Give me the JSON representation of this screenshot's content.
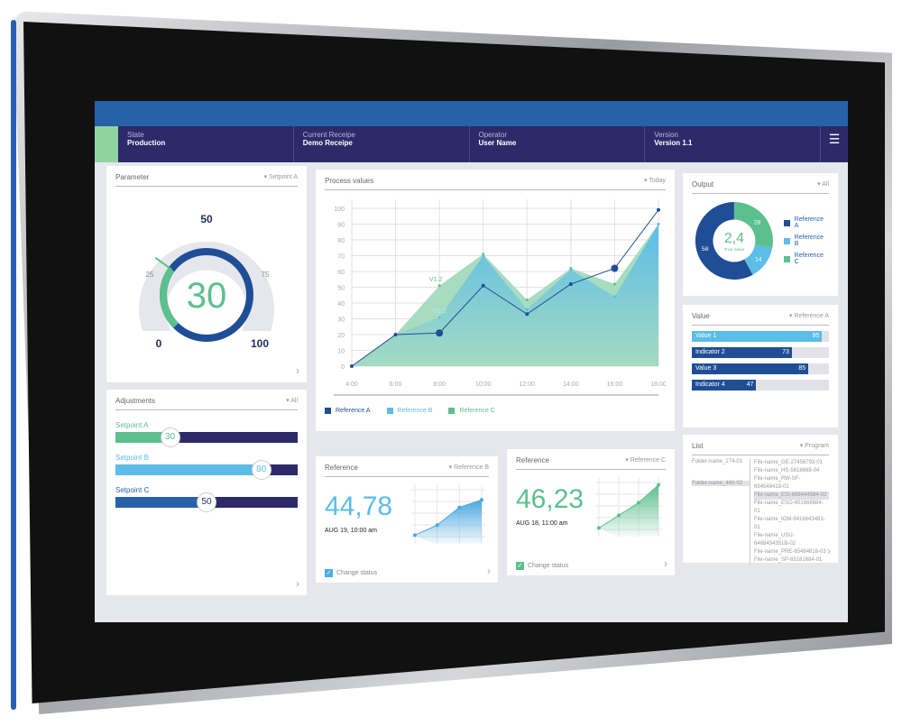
{
  "header": {
    "state_label": "State",
    "state_value": "Production",
    "receipe_label": "Current Receipe",
    "receipe_value": "Demo Receipe",
    "operator_label": "Operator",
    "operator_value": "User Name",
    "version_label": "Version",
    "version_value": "Version 1.1",
    "menu_icon": "hamburger-icon"
  },
  "parameter": {
    "title": "Parameter",
    "dropdown": "Setpoint A",
    "value": "30",
    "ticks": [
      "0",
      "25",
      "50",
      "75",
      "100"
    ],
    "level": 30
  },
  "adjustments": {
    "title": "Adjustments",
    "dropdown": "All",
    "sliders": [
      {
        "label": "Setpoint A",
        "value": "30",
        "color": "#5cc08e"
      },
      {
        "label": "Setpoint B",
        "value": "80",
        "color": "#5bbde8"
      },
      {
        "label": "Setpoint C",
        "value": "50",
        "color": "#2761a8"
      }
    ]
  },
  "process": {
    "title": "Process values",
    "dropdown": "Today",
    "annotations": [
      "V1.2",
      "V2.2"
    ]
  },
  "chart_data": {
    "type": "area",
    "x": [
      "4:00",
      "6:00",
      "8:00",
      "10:00",
      "12:00",
      "14:00",
      "16:00",
      "18:00"
    ],
    "ylim": [
      0,
      100
    ],
    "yticks": [
      "0",
      "10",
      "20",
      "30",
      "40",
      "50",
      "60",
      "70",
      "80",
      "90",
      "100"
    ],
    "grid": true,
    "legend": "bottom-left",
    "series": [
      {
        "name": "Reference A",
        "values": [
          0,
          20,
          21,
          51,
          33,
          52,
          62,
          99
        ],
        "color": "#1f4e96"
      },
      {
        "name": "Reference B",
        "values": [
          0,
          20,
          31,
          70,
          36,
          61,
          44,
          90
        ],
        "color": "#5bbde8"
      },
      {
        "name": "Reference C",
        "values": [
          0,
          20,
          51,
          71,
          42,
          62,
          52,
          90
        ],
        "color": "#5cc08e"
      }
    ]
  },
  "reference_b": {
    "title": "Reference",
    "dropdown": "Reference B",
    "value": "44,78",
    "date": "AUG 19, 10:00 am",
    "checkbox": "Change status",
    "trend": [
      10,
      30,
      65,
      80
    ]
  },
  "reference_c": {
    "title": "Reference",
    "dropdown": "Reference C",
    "value": "46,23",
    "date": "AUG 18, 11:00 am",
    "checkbox": "Change status",
    "trend": [
      10,
      35,
      60,
      95
    ]
  },
  "output": {
    "title": "Output",
    "dropdown": "All",
    "center_value": "2,4",
    "center_label": "True value",
    "slices": [
      {
        "name": "Reference A",
        "value": 58,
        "color": "#1f4e96"
      },
      {
        "name": "Reference B",
        "value": 14,
        "color": "#5bbde8"
      },
      {
        "name": "Reference C",
        "value": 28,
        "color": "#5cc08e"
      }
    ]
  },
  "value": {
    "title": "Value",
    "dropdown": "Reference A",
    "bars": [
      {
        "label": "Value 1",
        "value": 95,
        "color": "#5bbde8"
      },
      {
        "label": "Indicator 2",
        "value": 73,
        "color": "#1f4e96"
      },
      {
        "label": "Value 3",
        "value": 85,
        "color": "#1f4e96"
      },
      {
        "label": "Indicator 4",
        "value": 47,
        "color": "#1f4e96"
      }
    ]
  },
  "list": {
    "title": "List",
    "dropdown": "Program",
    "folders": [
      "Folder-name_274-01",
      "Folder-name_460-02"
    ],
    "files": [
      "File-name_GE-27458793-01",
      "File-name_HS-5618668-04",
      "File-name_RW-SF-694546418-01",
      "File-name_ESI-668444584-02",
      "File-name_ESO-651668684-01",
      "File-name_IOM-9416643483-01",
      "File-name_USU-6468454351B-02",
      "File-name_PRE-65484816-03",
      "File-name_SP-65181684-01"
    ]
  }
}
